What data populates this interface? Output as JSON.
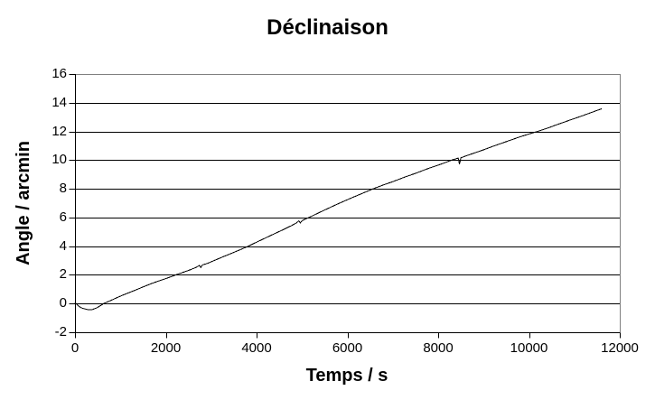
{
  "chart_data": {
    "type": "line",
    "title": "Déclinaison",
    "xlabel": "Temps / s",
    "ylabel": "Angle / arcmin",
    "xlim": [
      0,
      12000
    ],
    "ylim": [
      -2,
      16
    ],
    "x_ticks": [
      "0",
      "2000",
      "4000",
      "6000",
      "8000",
      "10000",
      "12000"
    ],
    "y_ticks": [
      "-2",
      "0",
      "2",
      "4",
      "6",
      "8",
      "10",
      "12",
      "14",
      "16"
    ],
    "grid": "horizontal gridlines every 2 units, black",
    "legend": "none",
    "colors": {
      "line": "#000000",
      "gridline": "#000000",
      "axis": "#000000",
      "plot_border": "#808080",
      "background": "#ffffff"
    },
    "series": [
      {
        "name": "Déclinaison",
        "points": [
          [
            0,
            0.08
          ],
          [
            60,
            -0.12
          ],
          [
            130,
            -0.28
          ],
          [
            200,
            -0.36
          ],
          [
            280,
            -0.42
          ],
          [
            380,
            -0.42
          ],
          [
            480,
            -0.3
          ],
          [
            560,
            -0.15
          ],
          [
            630,
            0.0
          ],
          [
            720,
            0.12
          ],
          [
            820,
            0.26
          ],
          [
            950,
            0.45
          ],
          [
            1100,
            0.65
          ],
          [
            1250,
            0.84
          ],
          [
            1400,
            1.03
          ],
          [
            1550,
            1.22
          ],
          [
            1700,
            1.41
          ],
          [
            1850,
            1.58
          ],
          [
            2000,
            1.74
          ],
          [
            2120,
            1.88
          ],
          [
            2242,
            2.02
          ],
          [
            2400,
            2.2
          ],
          [
            2550,
            2.37
          ],
          [
            2650,
            2.5
          ],
          [
            2700,
            2.58
          ],
          [
            2740,
            2.66
          ],
          [
            2770,
            2.52
          ],
          [
            2810,
            2.7
          ],
          [
            2900,
            2.78
          ],
          [
            3050,
            2.98
          ],
          [
            3200,
            3.18
          ],
          [
            3400,
            3.44
          ],
          [
            3600,
            3.7
          ],
          [
            3816,
            4.0
          ],
          [
            4000,
            4.28
          ],
          [
            4200,
            4.58
          ],
          [
            4400,
            4.88
          ],
          [
            4600,
            5.17
          ],
          [
            4780,
            5.45
          ],
          [
            4880,
            5.62
          ],
          [
            4930,
            5.76
          ],
          [
            4965,
            5.62
          ],
          [
            5000,
            5.78
          ],
          [
            5080,
            5.9
          ],
          [
            5154,
            6.0
          ],
          [
            5300,
            6.22
          ],
          [
            5500,
            6.52
          ],
          [
            5700,
            6.82
          ],
          [
            5900,
            7.1
          ],
          [
            6100,
            7.38
          ],
          [
            6300,
            7.64
          ],
          [
            6570,
            8.0
          ],
          [
            6800,
            8.28
          ],
          [
            7000,
            8.5
          ],
          [
            7250,
            8.8
          ],
          [
            7500,
            9.08
          ],
          [
            7750,
            9.38
          ],
          [
            8000,
            9.65
          ],
          [
            8150,
            9.82
          ],
          [
            8300,
            10.0
          ],
          [
            8400,
            10.1
          ],
          [
            8440,
            10.14
          ],
          [
            8470,
            9.72
          ],
          [
            8500,
            10.16
          ],
          [
            8600,
            10.28
          ],
          [
            8800,
            10.5
          ],
          [
            9000,
            10.72
          ],
          [
            9200,
            10.95
          ],
          [
            9400,
            11.18
          ],
          [
            9600,
            11.4
          ],
          [
            9800,
            11.62
          ],
          [
            10000,
            11.82
          ],
          [
            10190,
            12.0
          ],
          [
            10400,
            12.22
          ],
          [
            10600,
            12.45
          ],
          [
            10800,
            12.68
          ],
          [
            11000,
            12.9
          ],
          [
            11200,
            13.12
          ],
          [
            11400,
            13.35
          ],
          [
            11600,
            13.58
          ]
        ]
      }
    ]
  }
}
